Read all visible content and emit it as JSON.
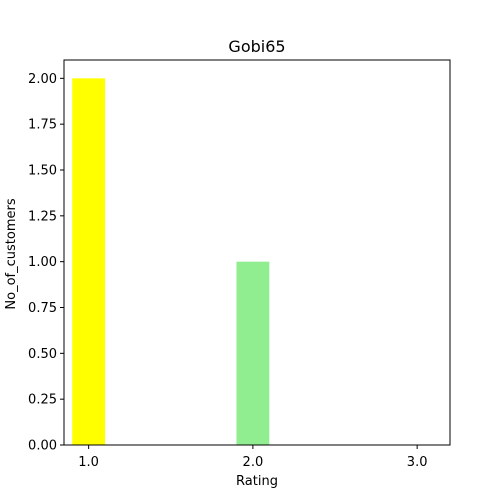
{
  "chart_data": {
    "type": "bar",
    "title": "Gobi65",
    "xlabel": "Rating",
    "ylabel": "No_of_customers",
    "categories": [
      "1.0",
      "2.0",
      "3.0"
    ],
    "x": [
      1.0,
      2.0,
      3.0
    ],
    "values": [
      2,
      1,
      0
    ],
    "bar_colors": [
      "#ffff00",
      "#90ee90",
      "#ffffff"
    ],
    "xlim": [
      0.85,
      3.2
    ],
    "ylim": [
      0,
      2.1
    ],
    "y_ticks": [
      "0.00",
      "0.25",
      "0.50",
      "0.75",
      "1.00",
      "1.25",
      "1.50",
      "1.75",
      "2.00"
    ],
    "y_tick_values": [
      0,
      0.25,
      0.5,
      0.75,
      1.0,
      1.25,
      1.5,
      1.75,
      2.0
    ],
    "bar_width": 0.2,
    "grid": false,
    "legend": "none"
  }
}
